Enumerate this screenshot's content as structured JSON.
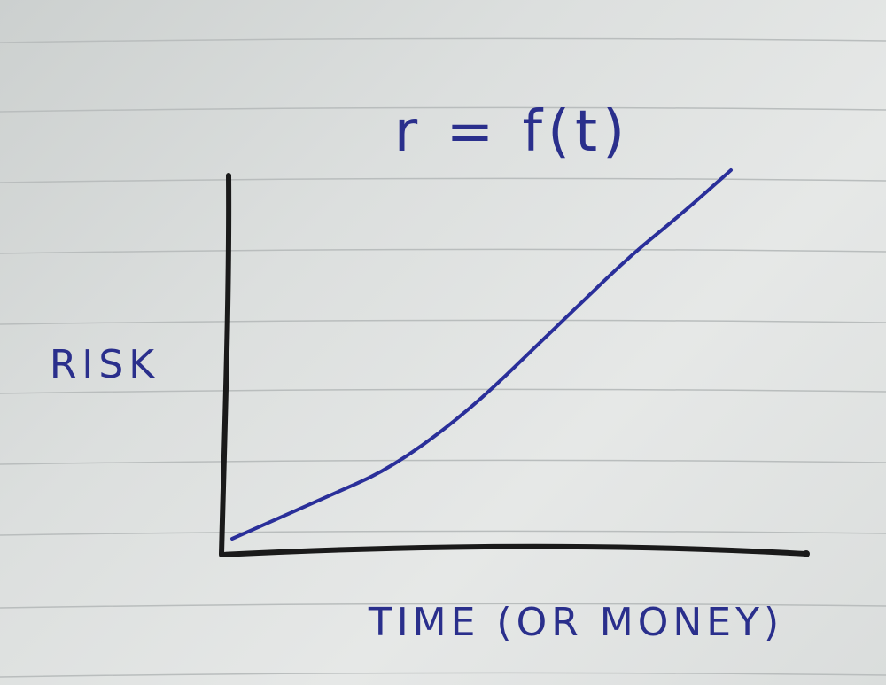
{
  "chart_data": {
    "type": "line",
    "title": "r = f(t)",
    "xlabel": "TIME (OR MONEY)",
    "ylabel": "RISK",
    "series": [
      {
        "values": [
          {
            "x": 0.0,
            "y": 0.0
          },
          {
            "x": 0.1,
            "y": 0.06
          },
          {
            "x": 0.2,
            "y": 0.12
          },
          {
            "x": 0.3,
            "y": 0.18
          },
          {
            "x": 0.4,
            "y": 0.27
          },
          {
            "x": 0.5,
            "y": 0.38
          },
          {
            "x": 0.6,
            "y": 0.51
          },
          {
            "x": 0.7,
            "y": 0.64
          },
          {
            "x": 0.8,
            "y": 0.77
          },
          {
            "x": 0.9,
            "y": 0.88
          },
          {
            "x": 1.0,
            "y": 1.0
          }
        ]
      }
    ],
    "grid": false,
    "colors": {
      "axes": "#1a1a1a",
      "curve": "#2a2f9a",
      "ink": "#2a2f8c",
      "rule": "#b9bdbd"
    }
  }
}
